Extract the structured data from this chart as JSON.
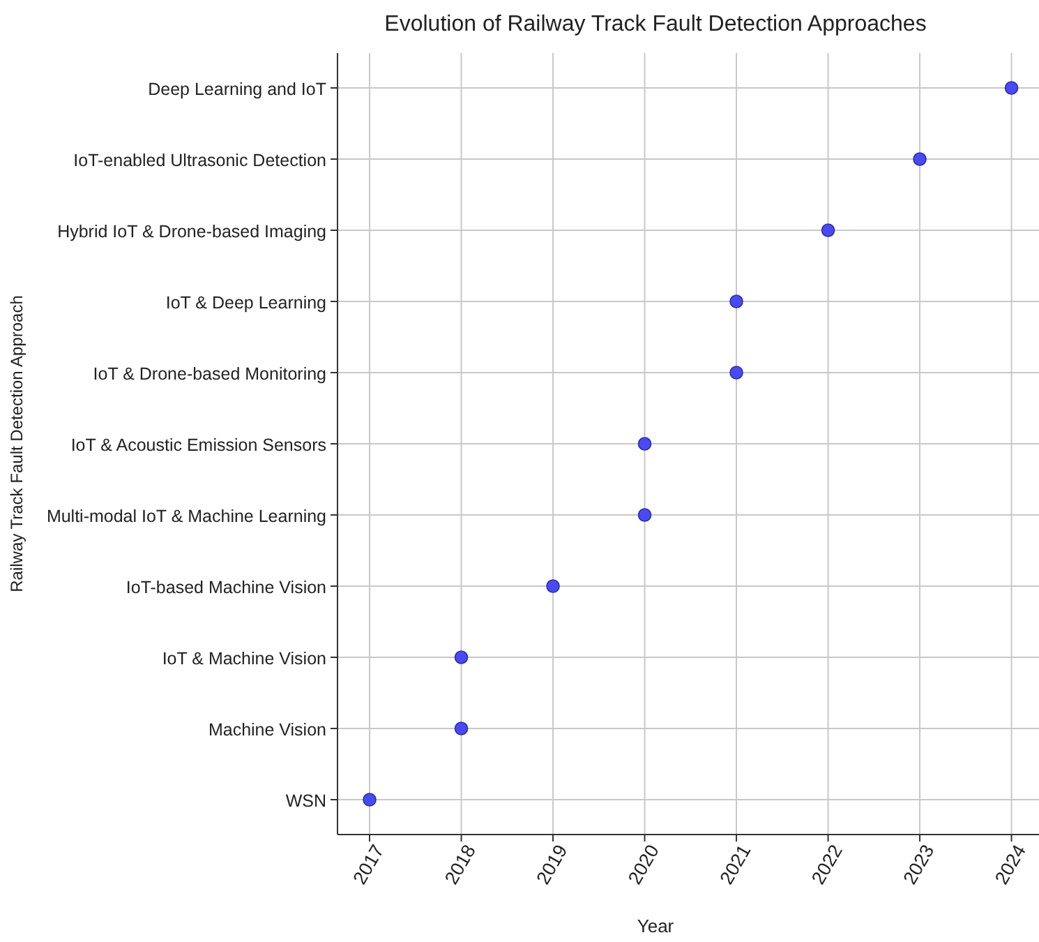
{
  "chart_data": {
    "type": "scatter",
    "orientation": "horizontal",
    "title": "Evolution of Railway Track Fault Detection Approaches",
    "xlabel": "Year",
    "ylabel": "Railway Track Fault Detection Approach",
    "categories": [
      "Deep Learning and IoT",
      "IoT-enabled Ultrasonic Detection",
      "Hybrid IoT & Drone-based Imaging",
      "IoT & Deep Learning",
      "IoT & Drone-based Monitoring",
      "IoT & Acoustic Emission Sensors",
      "Multi-modal IoT & Machine Learning",
      "IoT-based Machine Vision",
      "IoT & Machine Vision",
      "Machine Vision",
      "WSN"
    ],
    "values": [
      2024,
      2023,
      2022,
      2021,
      2021,
      2020,
      2020,
      2019,
      2018,
      2018,
      2017
    ],
    "color": "#4a4af5",
    "marker": "circle",
    "grid": true,
    "xlim": [
      2016.65,
      2024.3
    ],
    "xticks": [
      2017,
      2018,
      2019,
      2020,
      2021,
      2022,
      2023,
      2024
    ]
  }
}
